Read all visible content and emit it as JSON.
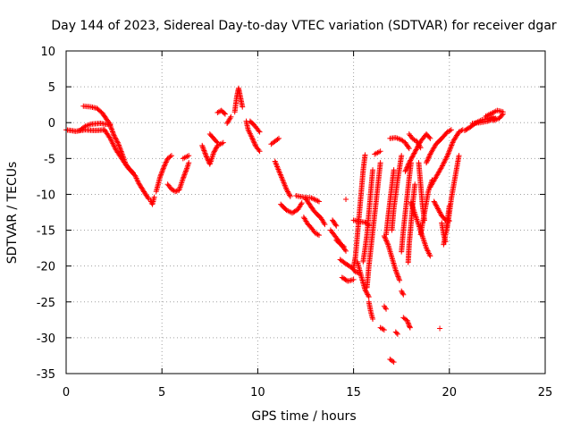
{
  "chart_data": {
    "type": "scatter",
    "title": "Day 144 of 2023, Sidereal Day-to-day VTEC variation (SDTVAR) for receiver dgar",
    "xlabel": "GPS time / hours",
    "ylabel": "SDTVAR / TECUs",
    "xlim": [
      0,
      25
    ],
    "ylim": [
      -35,
      10
    ],
    "xticks": [
      "0",
      "5",
      "10",
      "15",
      "20",
      "25"
    ],
    "yticks": [
      "10",
      "5",
      "0",
      "-5",
      "-10",
      "-15",
      "-20",
      "-25",
      "-30",
      "-35"
    ],
    "grid": true,
    "marker": "+",
    "color": "#ff0000",
    "segments": [
      [
        [
          0.0,
          -1.0
        ],
        [
          0.5,
          -1.2
        ],
        [
          1.0,
          -1.0
        ],
        [
          1.5,
          -1.1
        ],
        [
          2.0,
          -1.0
        ]
      ],
      [
        [
          0.7,
          -1.1
        ],
        [
          1.0,
          -0.5
        ],
        [
          1.3,
          -0.2
        ],
        [
          1.8,
          -0.1
        ],
        [
          2.3,
          -0.3
        ]
      ],
      [
        [
          0.9,
          2.3
        ],
        [
          1.3,
          2.2
        ],
        [
          1.6,
          2.0
        ],
        [
          1.9,
          1.3
        ],
        [
          2.1,
          0.5
        ],
        [
          2.3,
          -0.2
        ]
      ],
      [
        [
          2.3,
          -0.4
        ],
        [
          2.5,
          -1.8
        ],
        [
          2.7,
          -2.8
        ],
        [
          2.9,
          -4.2
        ],
        [
          3.1,
          -5.7
        ],
        [
          3.3,
          -6.5
        ],
        [
          3.6,
          -7.4
        ],
        [
          3.8,
          -8.5
        ],
        [
          4.1,
          -9.8
        ],
        [
          4.3,
          -10.6
        ]
      ],
      [
        [
          2.0,
          -1.0
        ],
        [
          2.3,
          -2.2
        ],
        [
          2.6,
          -3.8
        ],
        [
          2.9,
          -5.0
        ],
        [
          3.2,
          -6.2
        ],
        [
          3.5,
          -7.0
        ]
      ],
      [
        [
          4.4,
          -10.8
        ],
        [
          4.5,
          -11.4
        ],
        [
          4.6,
          -10.4
        ]
      ],
      [
        [
          4.7,
          -9.6
        ],
        [
          4.8,
          -8.6
        ],
        [
          4.9,
          -7.6
        ],
        [
          5.1,
          -6.2
        ],
        [
          5.3,
          -5.0
        ],
        [
          5.5,
          -4.6
        ]
      ],
      [
        [
          5.3,
          -8.6
        ],
        [
          5.5,
          -9.3
        ],
        [
          5.7,
          -9.6
        ],
        [
          5.9,
          -9.4
        ],
        [
          6.1,
          -7.8
        ],
        [
          6.3,
          -6.4
        ],
        [
          6.4,
          -5.6
        ]
      ],
      [
        [
          6.1,
          -5.0
        ],
        [
          6.4,
          -4.6
        ]
      ],
      [
        [
          7.1,
          -3.2
        ],
        [
          7.3,
          -4.6
        ],
        [
          7.5,
          -5.8
        ],
        [
          7.7,
          -4.2
        ],
        [
          7.9,
          -3.2
        ],
        [
          8.2,
          -2.8
        ]
      ],
      [
        [
          7.5,
          -1.6
        ],
        [
          7.7,
          -2.2
        ],
        [
          7.9,
          -2.8
        ]
      ],
      [
        [
          7.9,
          1.4
        ],
        [
          8.1,
          1.7
        ],
        [
          8.3,
          1.2
        ]
      ],
      [
        [
          8.4,
          -0.1
        ],
        [
          8.6,
          0.8
        ]
      ],
      [
        [
          8.8,
          1.5
        ],
        [
          8.9,
          3.5
        ],
        [
          9.0,
          4.8
        ],
        [
          9.1,
          3.5
        ],
        [
          9.2,
          2.2
        ]
      ],
      [
        [
          9.4,
          0.2
        ],
        [
          9.5,
          -1.0
        ],
        [
          9.7,
          -2.1
        ],
        [
          9.9,
          -3.3
        ],
        [
          10.1,
          -4.0
        ]
      ],
      [
        [
          9.6,
          0.2
        ],
        [
          9.8,
          -0.3
        ],
        [
          10.1,
          -1.3
        ]
      ],
      [
        [
          10.7,
          -3.0
        ],
        [
          10.9,
          -2.6
        ],
        [
          11.1,
          -2.2
        ]
      ],
      [
        [
          10.9,
          -5.4
        ],
        [
          11.1,
          -6.7
        ],
        [
          11.3,
          -8.0
        ],
        [
          11.5,
          -9.3
        ],
        [
          11.7,
          -10.3
        ]
      ],
      [
        [
          11.2,
          -11.4
        ],
        [
          11.5,
          -12.2
        ],
        [
          11.8,
          -12.6
        ],
        [
          12.1,
          -12.1
        ],
        [
          12.3,
          -11.2
        ]
      ],
      [
        [
          12.0,
          -10.2
        ],
        [
          12.4,
          -10.4
        ],
        [
          12.8,
          -10.5
        ],
        [
          13.2,
          -11.0
        ]
      ],
      [
        [
          12.4,
          -13.2
        ],
        [
          12.6,
          -14.1
        ],
        [
          12.8,
          -14.7
        ],
        [
          13.0,
          -15.4
        ],
        [
          13.2,
          -15.7
        ]
      ],
      [
        [
          12.5,
          -10.6
        ],
        [
          12.7,
          -11.4
        ],
        [
          12.9,
          -12.2
        ],
        [
          13.1,
          -12.8
        ],
        [
          13.3,
          -13.3
        ],
        [
          13.5,
          -14.2
        ]
      ],
      [
        [
          13.8,
          -15.0
        ],
        [
          14.0,
          -15.7
        ],
        [
          14.2,
          -16.4
        ],
        [
          14.4,
          -17.2
        ],
        [
          14.6,
          -17.9
        ]
      ],
      [
        [
          13.9,
          -13.6
        ],
        [
          14.1,
          -14.4
        ]
      ],
      [
        [
          14.1,
          -16.4
        ],
        [
          14.3,
          -16.9
        ],
        [
          14.5,
          -17.3
        ]
      ],
      [
        [
          14.3,
          -19.1
        ],
        [
          14.6,
          -19.7
        ],
        [
          14.9,
          -20.2
        ],
        [
          15.1,
          -20.8
        ],
        [
          15.3,
          -21.0
        ]
      ],
      [
        [
          14.4,
          -21.6
        ],
        [
          14.7,
          -22.1
        ],
        [
          15.0,
          -21.9
        ]
      ],
      [
        [
          14.6,
          -10.7
        ]
      ],
      [
        [
          15.0,
          -13.6
        ],
        [
          15.3,
          -13.8
        ],
        [
          15.6,
          -13.9
        ],
        [
          15.8,
          -14.3
        ]
      ],
      [
        [
          15.2,
          -19.4
        ],
        [
          15.4,
          -21.4
        ],
        [
          15.6,
          -23.3
        ],
        [
          15.8,
          -24.3
        ]
      ],
      [
        [
          15.6,
          -4.5
        ],
        [
          15.5,
          -6.7
        ],
        [
          15.4,
          -9.7
        ],
        [
          15.3,
          -12.7
        ],
        [
          15.2,
          -15.7
        ],
        [
          15.1,
          -18.7
        ],
        [
          15.0,
          -20.2
        ]
      ],
      [
        [
          15.8,
          -25.0
        ],
        [
          15.9,
          -26.4
        ],
        [
          16.0,
          -27.4
        ]
      ],
      [
        [
          16.1,
          -4.4
        ],
        [
          16.4,
          -4.0
        ]
      ],
      [
        [
          16.0,
          -6.6
        ],
        [
          15.9,
          -9.6
        ],
        [
          15.8,
          -12.6
        ],
        [
          15.7,
          -15.6
        ],
        [
          15.6,
          -17.6
        ],
        [
          15.5,
          -19.4
        ]
      ],
      [
        [
          16.4,
          -5.6
        ],
        [
          16.3,
          -8.0
        ],
        [
          16.2,
          -10.4
        ],
        [
          16.1,
          -12.8
        ],
        [
          16.0,
          -15.2
        ],
        [
          15.9,
          -17.6
        ],
        [
          15.8,
          -20.0
        ],
        [
          15.7,
          -23.0
        ]
      ],
      [
        [
          16.4,
          -28.6
        ],
        [
          16.6,
          -28.9
        ]
      ],
      [
        [
          16.6,
          -25.6
        ],
        [
          16.7,
          -26.0
        ]
      ],
      [
        [
          16.9,
          -33.0
        ],
        [
          17.1,
          -33.4
        ]
      ],
      [
        [
          17.2,
          -29.2
        ],
        [
          17.3,
          -29.5
        ]
      ],
      [
        [
          16.9,
          -2.2
        ],
        [
          17.2,
          -2.1
        ],
        [
          17.5,
          -2.4
        ],
        [
          17.7,
          -2.8
        ],
        [
          17.9,
          -3.6
        ]
      ],
      [
        [
          17.1,
          -6.6
        ],
        [
          17.0,
          -8.8
        ],
        [
          16.9,
          -11.0
        ],
        [
          16.8,
          -13.2
        ],
        [
          16.7,
          -15.6
        ]
      ],
      [
        [
          17.5,
          -4.6
        ],
        [
          17.3,
          -8.0
        ],
        [
          17.1,
          -12.0
        ],
        [
          17.0,
          -15.0
        ]
      ],
      [
        [
          16.6,
          -15.8
        ],
        [
          16.8,
          -17.0
        ],
        [
          17.0,
          -18.8
        ],
        [
          17.2,
          -20.6
        ],
        [
          17.4,
          -22.0
        ]
      ],
      [
        [
          17.5,
          -23.5
        ],
        [
          17.6,
          -24.0
        ]
      ],
      [
        [
          17.6,
          -27.2
        ],
        [
          17.8,
          -27.6
        ],
        [
          17.9,
          -28.3
        ],
        [
          17.95,
          -28.6
        ]
      ],
      [
        [
          18.0,
          -5.6
        ],
        [
          17.9,
          -7.8
        ],
        [
          17.8,
          -10.2
        ],
        [
          17.7,
          -12.6
        ],
        [
          17.6,
          -15.0
        ],
        [
          17.5,
          -18.0
        ]
      ],
      [
        [
          18.2,
          -8.6
        ],
        [
          18.1,
          -11.0
        ],
        [
          18.0,
          -14.0
        ],
        [
          17.9,
          -17.0
        ],
        [
          17.85,
          -19.5
        ]
      ],
      [
        [
          17.7,
          -6.8
        ],
        [
          17.9,
          -5.6
        ],
        [
          18.1,
          -4.6
        ],
        [
          18.3,
          -3.6
        ],
        [
          18.5,
          -2.6
        ],
        [
          18.8,
          -1.6
        ],
        [
          19.0,
          -2.2
        ]
      ],
      [
        [
          17.9,
          -1.6
        ],
        [
          18.1,
          -2.3
        ],
        [
          18.3,
          -2.6
        ],
        [
          18.5,
          -3.5
        ]
      ],
      [
        [
          18.0,
          -11.1
        ],
        [
          18.2,
          -12.7
        ],
        [
          18.4,
          -14.3
        ],
        [
          18.6,
          -15.9
        ],
        [
          18.8,
          -17.5
        ],
        [
          19.0,
          -18.6
        ]
      ],
      [
        [
          18.4,
          -5.6
        ],
        [
          18.5,
          -8.6
        ],
        [
          18.6,
          -11.6
        ],
        [
          18.7,
          -13.6
        ]
      ],
      [
        [
          18.5,
          -15.6
        ],
        [
          18.7,
          -12.6
        ],
        [
          18.9,
          -9.6
        ],
        [
          19.1,
          -8.0
        ]
      ],
      [
        [
          18.8,
          -5.6
        ],
        [
          19.0,
          -4.4
        ],
        [
          19.3,
          -3.0
        ],
        [
          19.6,
          -2.2
        ],
        [
          19.9,
          -1.3
        ],
        [
          20.1,
          -1.0
        ]
      ],
      [
        [
          19.0,
          -9.0
        ],
        [
          19.3,
          -7.6
        ],
        [
          19.6,
          -6.2
        ],
        [
          19.9,
          -4.6
        ],
        [
          20.2,
          -2.6
        ],
        [
          20.5,
          -1.3
        ],
        [
          20.7,
          -1.0
        ]
      ],
      [
        [
          19.2,
          -11.0
        ],
        [
          19.4,
          -12.0
        ],
        [
          19.6,
          -13.0
        ],
        [
          19.8,
          -13.6
        ],
        [
          20.0,
          -13.7
        ]
      ],
      [
        [
          19.5,
          -28.7
        ]
      ],
      [
        [
          19.6,
          -14.0
        ],
        [
          19.7,
          -15.6
        ],
        [
          19.8,
          -16.6
        ]
      ],
      [
        [
          20.0,
          -11.6
        ],
        [
          19.9,
          -13.6
        ],
        [
          19.8,
          -15.6
        ],
        [
          19.7,
          -17.0
        ]
      ],
      [
        [
          20.5,
          -4.6
        ],
        [
          20.3,
          -7.6
        ],
        [
          20.1,
          -10.6
        ],
        [
          19.95,
          -13.6
        ],
        [
          19.85,
          -15.2
        ]
      ],
      [
        [
          20.8,
          -1.1
        ],
        [
          21.1,
          -0.6
        ],
        [
          21.4,
          0.0
        ],
        [
          21.7,
          0.4
        ],
        [
          22.0,
          0.5
        ],
        [
          22.3,
          0.8
        ]
      ],
      [
        [
          21.2,
          -0.1
        ],
        [
          21.6,
          0.0
        ],
        [
          22.0,
          0.2
        ],
        [
          22.4,
          0.6
        ]
      ],
      [
        [
          21.9,
          0.9
        ],
        [
          22.2,
          1.3
        ],
        [
          22.5,
          1.7
        ],
        [
          22.8,
          1.5
        ]
      ],
      [
        [
          22.3,
          0.3
        ],
        [
          22.6,
          0.6
        ],
        [
          22.8,
          1.2
        ]
      ]
    ]
  }
}
